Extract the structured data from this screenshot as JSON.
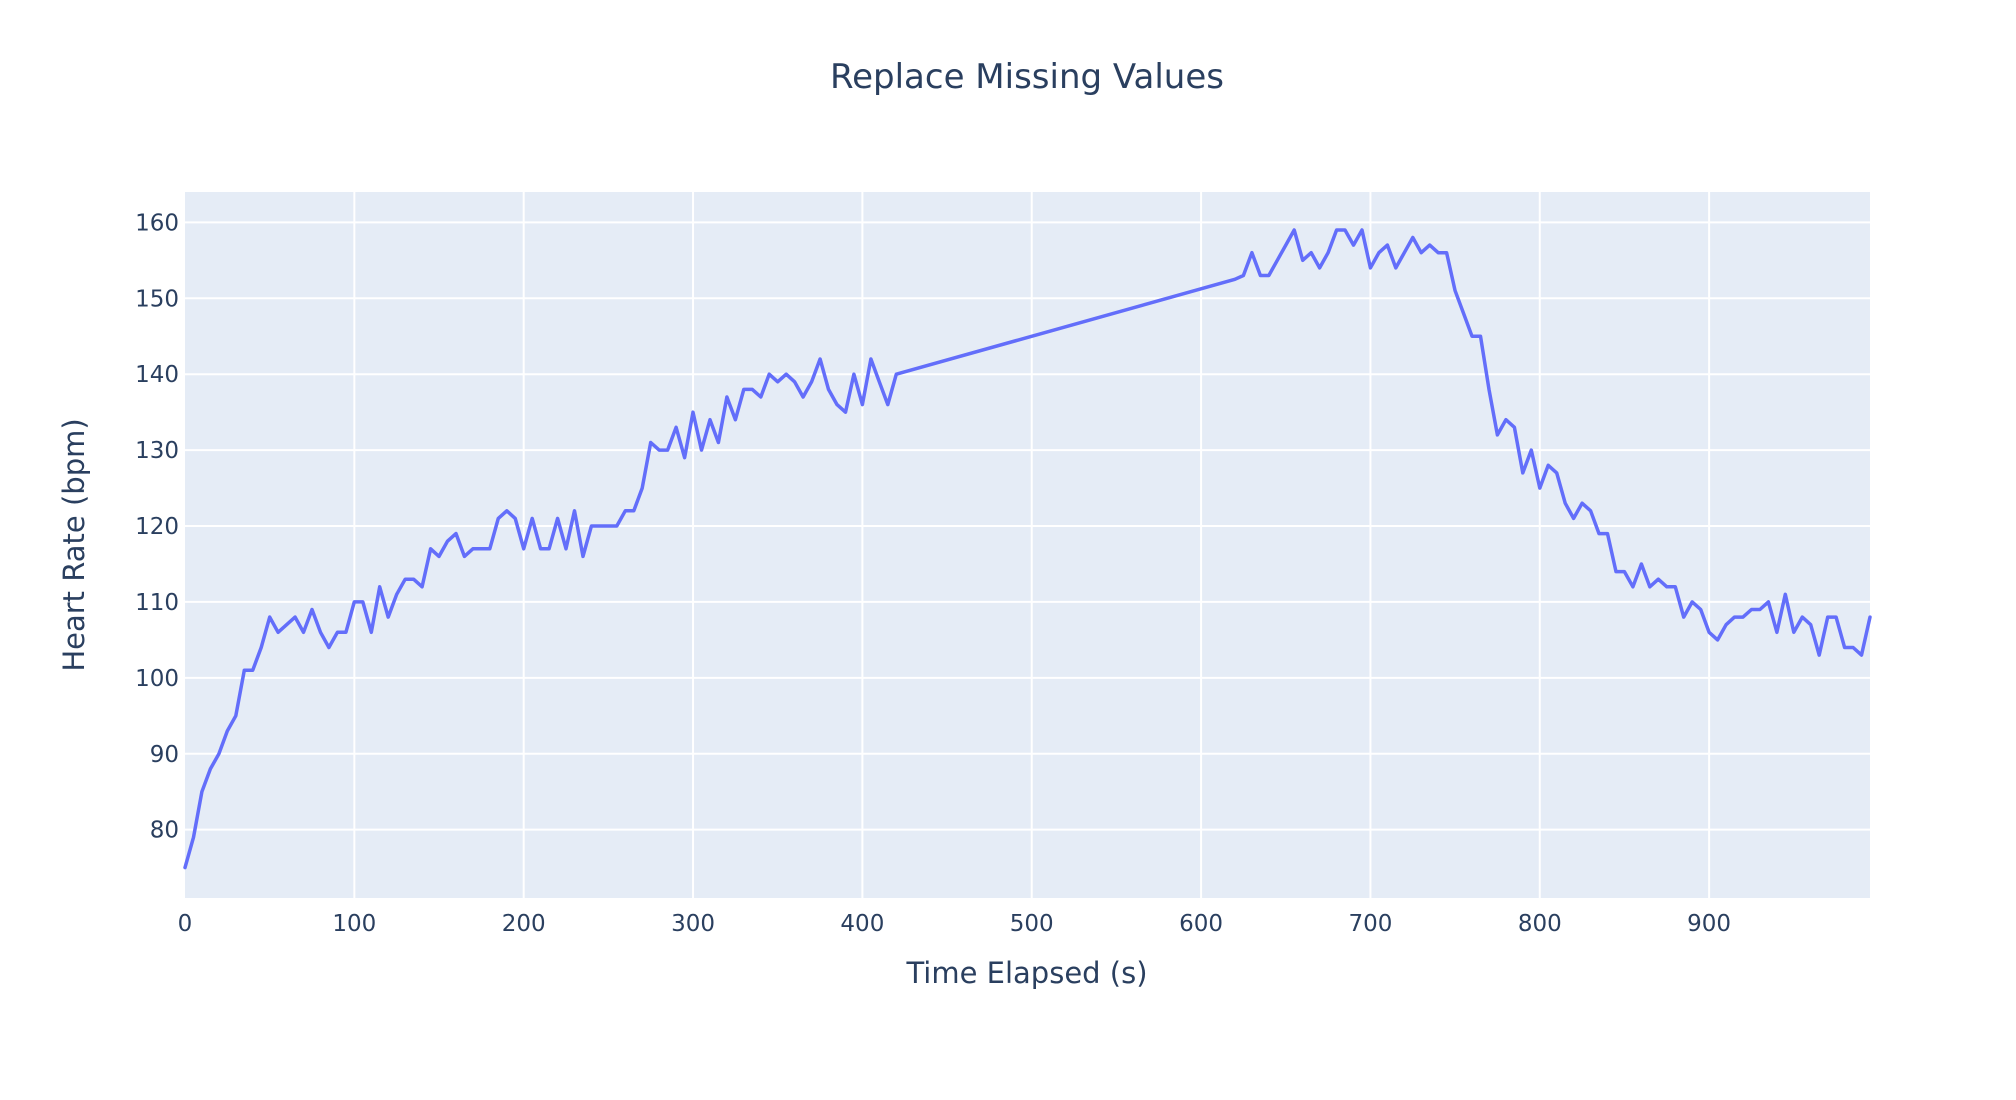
{
  "chart_data": {
    "type": "line",
    "title": "Replace Missing Values",
    "xlabel": "Time Elapsed (s)",
    "ylabel": "Heart Rate (bpm)",
    "xlim": [
      0,
      995
    ],
    "ylim": [
      71,
      164
    ],
    "xticks": [
      0,
      100,
      200,
      300,
      400,
      500,
      600,
      700,
      800,
      900
    ],
    "yticks": [
      80,
      90,
      100,
      110,
      120,
      130,
      140,
      150,
      160
    ],
    "grid": true,
    "line_color": "#636efa",
    "plot_bg": "#e5ecf6",
    "series": [
      {
        "x": [
          0,
          5,
          10,
          15,
          20,
          25,
          30,
          35,
          40,
          45,
          50,
          55,
          60,
          65,
          70,
          75,
          80,
          85,
          90,
          95,
          100,
          105,
          110,
          115,
          120,
          125,
          130,
          135,
          140,
          145,
          150,
          155,
          160,
          165,
          170,
          175,
          180,
          185,
          190,
          195,
          200,
          205,
          210,
          215,
          220,
          225,
          230,
          235,
          240,
          245,
          250,
          255,
          260,
          265,
          270,
          275,
          280,
          285,
          290,
          295,
          300,
          305,
          310,
          315,
          320,
          325,
          330,
          335,
          340,
          345,
          350,
          355,
          360,
          365,
          370,
          375,
          380,
          385,
          390,
          395,
          400,
          405,
          410,
          415,
          420,
          620,
          625,
          630,
          635,
          640,
          645,
          650,
          655,
          660,
          665,
          670,
          675,
          680,
          685,
          690,
          695,
          700,
          705,
          710,
          715,
          720,
          725,
          730,
          735,
          740,
          745,
          750,
          755,
          760,
          765,
          770,
          775,
          780,
          785,
          790,
          795,
          800,
          805,
          810,
          815,
          820,
          825,
          830,
          835,
          840,
          845,
          850,
          855,
          860,
          865,
          870,
          875,
          880,
          885,
          890,
          895,
          900,
          905,
          910,
          915,
          920,
          925,
          930,
          935,
          940,
          945,
          950,
          955,
          960,
          965,
          970,
          975,
          980,
          985,
          990,
          995
        ],
        "values": [
          75,
          79,
          85,
          88,
          90,
          93,
          95,
          101,
          101,
          104,
          108,
          106,
          107,
          108,
          106,
          109,
          106,
          104,
          106,
          106,
          110,
          110,
          106,
          112,
          108,
          111,
          113,
          113,
          112,
          117,
          116,
          118,
          119,
          116,
          117,
          117,
          117,
          121,
          122,
          121,
          117,
          121,
          117,
          117,
          121,
          117,
          122,
          116,
          120,
          120,
          120,
          120,
          122,
          122,
          125,
          131,
          130,
          130,
          133,
          129,
          135,
          130,
          134,
          131,
          137,
          134,
          138,
          138,
          137,
          140,
          139,
          140,
          139,
          137,
          139,
          142,
          138,
          136,
          135,
          140,
          136,
          142,
          139,
          136,
          140,
          152.5,
          153,
          156,
          153,
          153,
          155,
          157,
          159,
          155,
          156,
          154,
          156,
          159,
          159,
          157,
          159,
          154,
          156,
          157,
          154,
          156,
          158,
          156,
          157,
          156,
          156,
          151,
          148,
          145,
          145,
          138,
          132,
          134,
          133,
          127,
          130,
          125,
          128,
          127,
          123,
          121,
          123,
          122,
          119,
          119,
          114,
          114,
          112,
          115,
          112,
          113,
          112,
          112,
          108,
          110,
          109,
          106,
          105,
          107,
          108,
          108,
          109,
          109,
          110,
          106,
          111,
          106,
          108,
          107,
          103,
          108,
          108,
          104,
          104,
          103,
          108
        ]
      }
    ]
  }
}
